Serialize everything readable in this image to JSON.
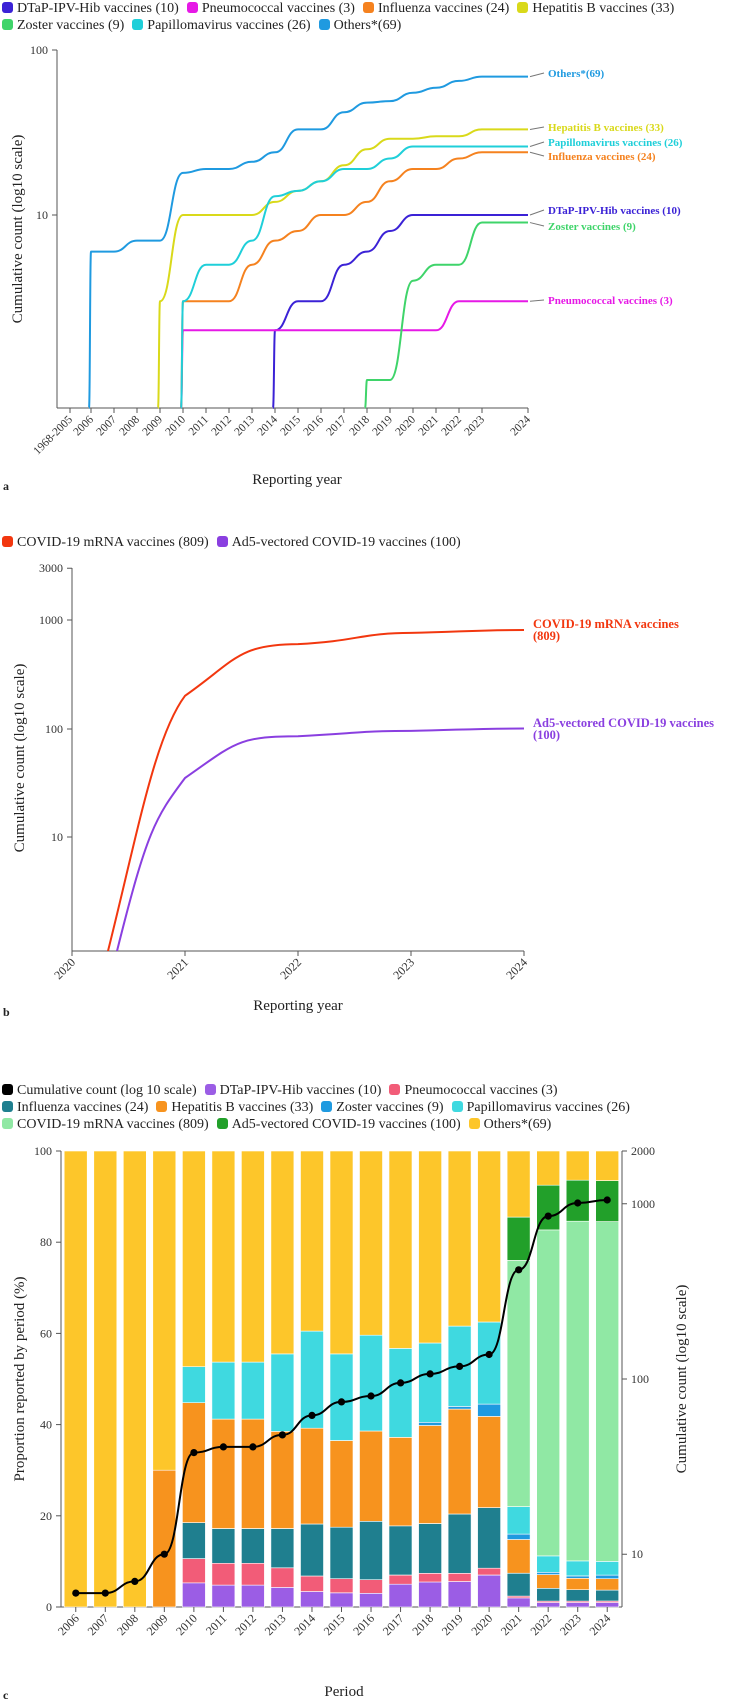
{
  "chart_data": [
    {
      "type": "line",
      "panel_label": "a",
      "title": "",
      "xlabel": "Reporting year",
      "ylabel": "Cumulative count (log10 scale)",
      "log_scale_y": true,
      "ylim": [
        1,
        100
      ],
      "y_tick_labels": [
        "10",
        "100"
      ],
      "x": [
        "1968-2005",
        "2006",
        "2007",
        "2008",
        "2009",
        "2010",
        "2011",
        "2012",
        "2013",
        "2014",
        "2015",
        "2016",
        "2017",
        "2018",
        "2019",
        "2020",
        "2021",
        "2022",
        "2023",
        "2024"
      ],
      "series": [
        {
          "name": "DTaP-IPV-Hib vaccines (10)",
          "end_label": "DTaP-IPV-Hib vaccines (10)",
          "color": "#3b22d6",
          "values": [
            null,
            null,
            null,
            null,
            null,
            null,
            null,
            null,
            null,
            2,
            3,
            3,
            5,
            6,
            8,
            10,
            10,
            10,
            10,
            10
          ]
        },
        {
          "name": "Pneumococcal vaccines (3)",
          "end_label": "Pneumococcal vaccines (3)",
          "color": "#e619e6",
          "values": [
            null,
            null,
            null,
            null,
            null,
            2,
            2,
            2,
            2,
            2,
            2,
            2,
            2,
            2,
            2,
            2,
            2,
            3,
            3,
            3
          ]
        },
        {
          "name": "Influenza vaccines (24)",
          "end_label": "Influenza vaccines (24)",
          "color": "#f5821f",
          "values": [
            null,
            null,
            null,
            null,
            null,
            3,
            3,
            3,
            5,
            7,
            8,
            10,
            10,
            12,
            16,
            19,
            19,
            22,
            24,
            24
          ]
        },
        {
          "name": "Hepatitis B vaccines (33)",
          "end_label": "Hepatitis B vaccines (33)",
          "color": "#d9d91a",
          "values": [
            null,
            null,
            null,
            null,
            3,
            10,
            10,
            10,
            10,
            12,
            14,
            16,
            20,
            25,
            29,
            29,
            30,
            30,
            33,
            33
          ]
        },
        {
          "name": "Zoster vaccines (9)",
          "end_label": "Zoster vaccines (9)",
          "color": "#3fd46a",
          "values": [
            null,
            null,
            null,
            null,
            null,
            null,
            null,
            null,
            null,
            null,
            null,
            null,
            null,
            1,
            1,
            4,
            5,
            5,
            9,
            9
          ]
        },
        {
          "name": "Papillomavirus vaccines (26)",
          "end_label": "Papillomavirus vaccines (26)",
          "color": "#1fcfd9",
          "values": [
            null,
            null,
            null,
            null,
            null,
            3,
            5,
            5,
            7,
            13,
            14,
            16,
            19,
            19,
            22,
            26,
            26,
            26,
            26,
            26
          ]
        },
        {
          "name": "Others*(69)",
          "end_label": "Others*(69)",
          "color": "#1f9ae0",
          "values": [
            null,
            6,
            6,
            7,
            7,
            18,
            19,
            19,
            21,
            24,
            33,
            33,
            42,
            48,
            49,
            55,
            59,
            65,
            69,
            69
          ]
        }
      ]
    },
    {
      "type": "line",
      "panel_label": "b",
      "title": "",
      "xlabel": "Reporting year",
      "ylabel": "Cumulative count (log10 scale)",
      "log_scale_y": true,
      "ylim": [
        1,
        3000
      ],
      "y_tick_labels": [
        "10",
        "100",
        "1000",
        "3000"
      ],
      "x": [
        "2020",
        "2021",
        "2022",
        "2023",
        "2024"
      ],
      "series": [
        {
          "name": "COVID-19 mRNA vaccines (809)",
          "end_label": "COVID-19 mRNA vaccines (809)",
          "color": "#f2370f",
          "values": [
            null,
            200,
            600,
            760,
            809
          ]
        },
        {
          "name": "Ad5-vectored COVID-19 vaccines (100)",
          "end_label": "Ad5-vectored COVID-19 vaccines (100)",
          "color": "#8a3fe0",
          "values": [
            null,
            35,
            85,
            95,
            100
          ]
        }
      ]
    },
    {
      "type": "bar",
      "stacked": true,
      "panel_label": "c",
      "title": "",
      "xlabel": "Period",
      "ylabel": "Proportion reported by period (%)",
      "y2label": "Cumulative count (log10 scale)",
      "ylim": [
        0,
        100
      ],
      "y_tick_labels": [
        "0",
        "20",
        "40",
        "60",
        "80",
        "100"
      ],
      "y2_tick_labels": [
        "10",
        "100",
        "1000",
        "2000"
      ],
      "y2_log_range": [
        5,
        2000
      ],
      "categories": [
        "2006",
        "2007",
        "2008",
        "2009",
        "2010",
        "2011",
        "2012",
        "2013",
        "2014",
        "2015",
        "2016",
        "2017",
        "2018",
        "2019",
        "2020",
        "2021",
        "2022",
        "2023",
        "2024"
      ],
      "series": [
        {
          "name": "DTaP-IPV-Hib vaccines (10)",
          "color": "#9b5de5",
          "values": [
            0,
            0,
            0,
            0,
            5.3,
            4.8,
            4.8,
            4.3,
            3.4,
            3.1,
            3.0,
            5.0,
            5.5,
            5.6,
            7.0,
            2.0,
            1.0,
            1.0,
            1.0
          ]
        },
        {
          "name": "Pneumococcal vaccines (3)",
          "color": "#f25c78",
          "values": [
            0,
            0,
            0,
            0,
            5.3,
            4.8,
            4.8,
            4.3,
            3.4,
            3.1,
            3.0,
            2.0,
            1.9,
            1.8,
            1.5,
            0.4,
            0.3,
            0.3,
            0.3
          ]
        },
        {
          "name": "Influenza vaccines (24)",
          "color": "#1f7f8f",
          "values": [
            0,
            0,
            0,
            0,
            7.9,
            7.6,
            7.6,
            8.6,
            11.4,
            11.3,
            12.8,
            10.8,
            10.9,
            13.0,
            13.3,
            5.0,
            2.8,
            2.5,
            2.4
          ]
        },
        {
          "name": "Hepatitis B vaccines (33)",
          "color": "#f7931e",
          "values": [
            0,
            0,
            0,
            30.0,
            26.3,
            24.0,
            24.0,
            21.3,
            21.0,
            19.0,
            19.8,
            19.4,
            21.5,
            23.0,
            20.0,
            7.4,
            3.0,
            2.5,
            2.5
          ]
        },
        {
          "name": "Zoster vaccines (9)",
          "color": "#1f9ae0",
          "values": [
            0,
            0,
            0,
            0,
            0,
            0,
            0,
            0,
            0,
            0,
            0,
            0,
            0.7,
            0.6,
            2.7,
            1.2,
            0.5,
            0.5,
            0.8
          ]
        },
        {
          "name": "Papillomavirus vaccines (26)",
          "color": "#3fd9e0",
          "values": [
            0,
            0,
            0,
            0,
            7.9,
            12.5,
            12.5,
            17.0,
            21.3,
            19.0,
            21.0,
            19.5,
            17.4,
            17.6,
            18.0,
            6.0,
            3.6,
            3.3,
            3.0
          ]
        },
        {
          "name": "COVID-19 mRNA vaccines (809)",
          "color": "#90e8a4",
          "values": [
            0,
            0,
            0,
            0,
            0,
            0,
            0,
            0,
            0,
            0,
            0,
            0,
            0,
            0,
            0,
            54.0,
            71.5,
            74.5,
            74.5
          ]
        },
        {
          "name": "Ad5-vectored COVID-19 vaccines (100)",
          "color": "#22a02a",
          "values": [
            0,
            0,
            0,
            0,
            0,
            0,
            0,
            0,
            0,
            0,
            0,
            0,
            0,
            0,
            0,
            9.5,
            9.8,
            9.0,
            9.0
          ]
        },
        {
          "name": "Others*(69)",
          "color": "#fdc62a",
          "values": [
            100,
            100,
            100,
            70.0,
            47.3,
            46.3,
            46.3,
            44.5,
            39.5,
            44.5,
            40.4,
            43.3,
            42.1,
            38.4,
            37.5,
            14.5,
            7.5,
            6.4,
            6.5
          ]
        }
      ],
      "line_series": {
        "name": "Cumulative count (log 10 scale)",
        "color": "#000000",
        "values": [
          6,
          6,
          7,
          10,
          38,
          41,
          41,
          48,
          62,
          74,
          80,
          95,
          107,
          118,
          138,
          420,
          850,
          1010,
          1050
        ]
      }
    }
  ]
}
